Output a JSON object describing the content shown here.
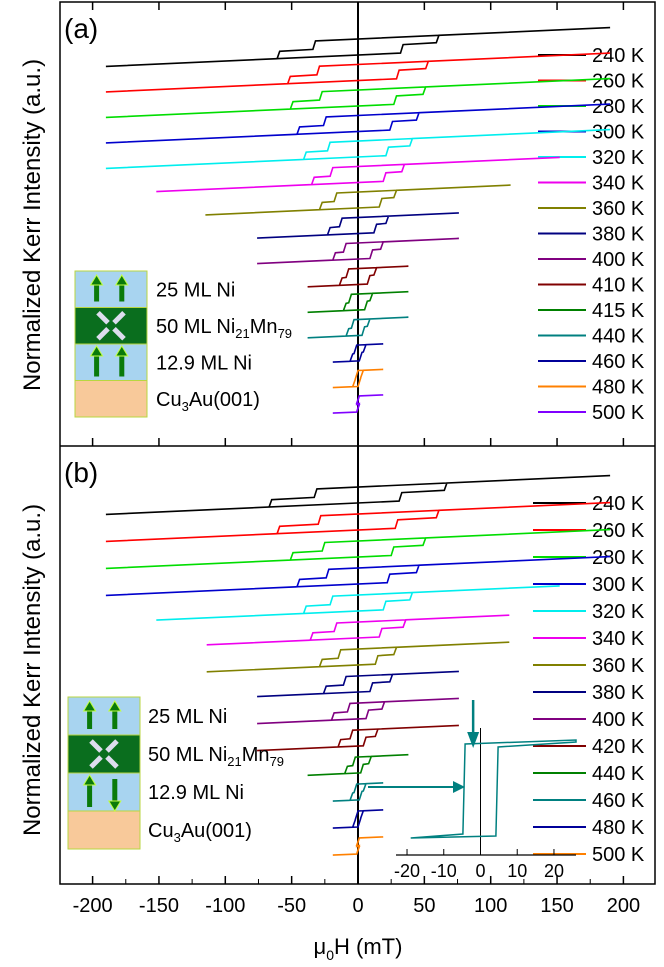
{
  "chart_data": {
    "type": "line",
    "xlabel": "μ0H (mT)",
    "ylabel": "Normalized Kerr Intensity (a.u.)",
    "xlim": [
      -225,
      225
    ],
    "xticks": [
      -200,
      -150,
      -100,
      -50,
      0,
      50,
      100,
      150,
      200
    ],
    "xtick_labels": [
      "-200",
      "-150",
      "-100",
      "-50",
      "0",
      "50",
      "100",
      "150",
      "200"
    ],
    "legend_position": "right",
    "panels": [
      {
        "label": "(a)",
        "legend_series": [
          {
            "name": "240 K",
            "color": "#000000",
            "field_range": [
              -190,
              190
            ],
            "coercive_field": 47,
            "inner_step": 33,
            "outer_step": 60
          },
          {
            "name": "260 K",
            "color": "#ff0000",
            "field_range": [
              -190,
              190
            ],
            "coercive_field": 42,
            "inner_step": 30,
            "outer_step": 52
          },
          {
            "name": "280 K",
            "color": "#00dd00",
            "field_range": [
              -190,
              190
            ],
            "coercive_field": 38,
            "inner_step": 28,
            "outer_step": 50
          },
          {
            "name": "300 K",
            "color": "#0000cc",
            "field_range": [
              -190,
              190
            ],
            "coercive_field": 33,
            "inner_step": 25,
            "outer_step": 45
          },
          {
            "name": "320 K",
            "color": "#00eeee",
            "field_range": [
              -190,
              190
            ],
            "coercive_field": 28,
            "inner_step": 22,
            "outer_step": 40
          },
          {
            "name": "340 K",
            "color": "#ee00ee",
            "field_range": [
              -152,
              152
            ],
            "coercive_field": 25,
            "inner_step": 20,
            "outer_step": 34
          },
          {
            "name": "360 K",
            "color": "#808000",
            "field_range": [
              -115,
              115
            ],
            "coercive_field": 21,
            "inner_step": 17,
            "outer_step": 28
          },
          {
            "name": "380 K",
            "color": "#000080",
            "field_range": [
              -76,
              76
            ],
            "coercive_field": 16,
            "inner_step": 13,
            "outer_step": 22
          },
          {
            "name": "400 K",
            "color": "#800080",
            "field_range": [
              -76,
              76
            ],
            "coercive_field": 13,
            "inner_step": 10,
            "outer_step": 18
          },
          {
            "name": "410 K",
            "color": "#800000",
            "field_range": [
              -38,
              38
            ],
            "coercive_field": 10,
            "inner_step": 8,
            "outer_step": 13
          },
          {
            "name": "415 K",
            "color": "#008000",
            "field_range": [
              -38,
              38
            ],
            "coercive_field": 8,
            "inner_step": 6,
            "outer_step": 10
          },
          {
            "name": "440 K",
            "color": "#008080",
            "field_range": [
              -38,
              38
            ],
            "coercive_field": 6,
            "inner_step": 4,
            "outer_step": 8
          },
          {
            "name": "460 K",
            "color": "#000099",
            "field_range": [
              -19,
              19
            ],
            "coercive_field": 4,
            "inner_step": 2,
            "outer_step": 5
          },
          {
            "name": "480 K",
            "color": "#ff8000",
            "field_range": [
              -19,
              19
            ],
            "coercive_field": 3,
            "inner_step": 1,
            "outer_step": 3
          },
          {
            "name": "500 K",
            "color": "#8000ff",
            "field_range": [
              -19,
              19
            ],
            "coercive_field": 2,
            "inner_step": 0,
            "outer_step": 0
          }
        ]
      },
      {
        "label": "(b)",
        "legend_series": [
          {
            "name": "240 K",
            "color": "#000000",
            "field_range": [
              -190,
              190
            ],
            "coercive_field": 48,
            "inner_step": 32,
            "outer_step": 66
          },
          {
            "name": "260 K",
            "color": "#ff0000",
            "field_range": [
              -190,
              190
            ],
            "coercive_field": 43,
            "inner_step": 29,
            "outer_step": 60
          },
          {
            "name": "280 K",
            "color": "#00dd00",
            "field_range": [
              -190,
              190
            ],
            "coercive_field": 38,
            "inner_step": 26,
            "outer_step": 50
          },
          {
            "name": "300 K",
            "color": "#0000cc",
            "field_range": [
              -190,
              190
            ],
            "coercive_field": 33,
            "inner_step": 23,
            "outer_step": 45
          },
          {
            "name": "320 K",
            "color": "#00eeee",
            "field_range": [
              -152,
              152
            ],
            "coercive_field": 29,
            "inner_step": 20,
            "outer_step": 40
          },
          {
            "name": "340 K",
            "color": "#ee00ee",
            "field_range": [
              -114,
              114
            ],
            "coercive_field": 25,
            "inner_step": 17,
            "outer_step": 35
          },
          {
            "name": "360 K",
            "color": "#808000",
            "field_range": [
              -114,
              114
            ],
            "coercive_field": 21,
            "inner_step": 14,
            "outer_step": 28
          },
          {
            "name": "380 K",
            "color": "#000080",
            "field_range": [
              -76,
              76
            ],
            "coercive_field": 17,
            "inner_step": 10,
            "outer_step": 25
          },
          {
            "name": "400 K",
            "color": "#800080",
            "field_range": [
              -76,
              76
            ],
            "coercive_field": 13,
            "inner_step": 7,
            "outer_step": 19
          },
          {
            "name": "420 K",
            "color": "#800000",
            "field_range": [
              -76,
              76
            ],
            "coercive_field": 10,
            "inner_step": 5,
            "outer_step": 14
          },
          {
            "name": "440 K",
            "color": "#008000",
            "field_range": [
              -38,
              38
            ],
            "coercive_field": 6,
            "inner_step": 3,
            "outer_step": 9
          },
          {
            "name": "460 K",
            "color": "#008080",
            "field_range": [
              -19,
              19
            ],
            "coercive_field": 4,
            "inner_step": 2,
            "outer_step": 5
          },
          {
            "name": "480 K",
            "color": "#000099",
            "field_range": [
              -19,
              19
            ],
            "coercive_field": 3,
            "inner_step": 1,
            "outer_step": 3
          },
          {
            "name": "500 K",
            "color": "#ff8000",
            "field_range": [
              -19,
              19
            ],
            "coercive_field": 2,
            "inner_step": 0,
            "outer_step": 0
          }
        ]
      }
    ],
    "inset": {
      "panel": "(b)",
      "series": "460 K",
      "color": "#008080",
      "xlim": [
        -23,
        26
      ],
      "xticks": [
        -20,
        -10,
        0,
        10,
        20
      ],
      "xtick_labels": [
        "-20",
        "-10",
        "0",
        "10",
        "20"
      ],
      "coercive_field": 4.5
    }
  },
  "sample_diagram": {
    "layers": [
      {
        "label": "25 ML Ni",
        "fill": "#a8d4f0",
        "moment": "up"
      },
      {
        "label": "50 ML Ni",
        "subscript_1": "21",
        "mid": "Mn",
        "subscript_2": "79",
        "fill": "#0a6e1e",
        "moment": "antiferromagnetic"
      },
      {
        "label": "12.9 ML Ni",
        "moment_a": "up",
        "moment_b": "down",
        "fill": "#a8d4f0"
      },
      {
        "label": "Cu",
        "subscript": "3",
        "suffix": "Au(001)",
        "fill": "#f8c99a"
      }
    ],
    "arrow_color": "#0a7a0a"
  }
}
